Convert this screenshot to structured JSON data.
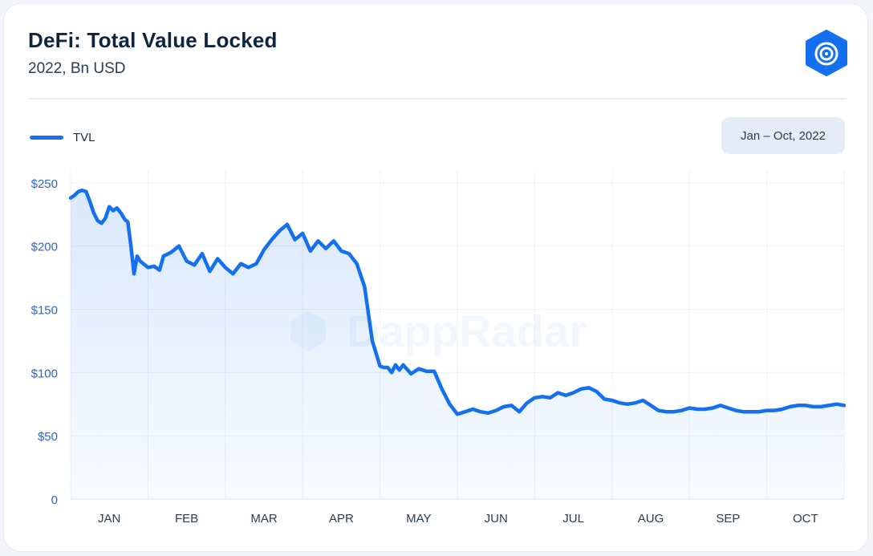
{
  "header": {
    "title": "DeFi: Total Value Locked",
    "subtitle": "2022, Bn USD",
    "logo_icon": "dappradar-logo-icon"
  },
  "legend": {
    "label": "TVL",
    "color": "#1570ef"
  },
  "date_range": {
    "label": "Jan – Oct, 2022"
  },
  "watermark": {
    "text": "DappRadar"
  },
  "chart_data": {
    "type": "area",
    "title": "DeFi: Total Value Locked",
    "subtitle": "2022, Bn USD",
    "xlabel": "",
    "ylabel": "",
    "x_ticks": [
      "JAN",
      "FEB",
      "MAR",
      "APR",
      "MAY",
      "JUN",
      "JUL",
      "AUG",
      "SEP",
      "OCT"
    ],
    "y_ticks": [
      "0",
      "$50",
      "$100",
      "$150",
      "$200",
      "$250"
    ],
    "y_tick_values": [
      0,
      50,
      100,
      150,
      200,
      250
    ],
    "ylim": [
      0,
      260
    ],
    "xlim": [
      0,
      10
    ],
    "grid": true,
    "legend_position": "top-left",
    "series": [
      {
        "name": "TVL",
        "color": "#1570ef",
        "x": [
          0.0,
          0.05,
          0.1,
          0.15,
          0.2,
          0.25,
          0.3,
          0.35,
          0.4,
          0.45,
          0.5,
          0.55,
          0.6,
          0.65,
          0.7,
          0.74,
          0.78,
          0.82,
          0.86,
          0.9,
          1.0,
          1.08,
          1.15,
          1.2,
          1.3,
          1.4,
          1.5,
          1.6,
          1.7,
          1.8,
          1.9,
          2.0,
          2.1,
          2.2,
          2.3,
          2.4,
          2.5,
          2.6,
          2.7,
          2.8,
          2.9,
          3.0,
          3.1,
          3.2,
          3.3,
          3.4,
          3.5,
          3.6,
          3.7,
          3.8,
          3.9,
          4.0,
          4.05,
          4.1,
          4.15,
          4.2,
          4.25,
          4.3,
          4.4,
          4.5,
          4.6,
          4.7,
          4.8,
          4.9,
          5.0,
          5.1,
          5.2,
          5.3,
          5.4,
          5.5,
          5.6,
          5.7,
          5.8,
          5.9,
          6.0,
          6.1,
          6.2,
          6.3,
          6.4,
          6.5,
          6.6,
          6.7,
          6.8,
          6.9,
          7.0,
          7.1,
          7.2,
          7.3,
          7.4,
          7.5,
          7.6,
          7.7,
          7.8,
          7.9,
          8.0,
          8.1,
          8.2,
          8.3,
          8.4,
          8.5,
          8.6,
          8.7,
          8.8,
          8.9,
          9.0,
          9.1,
          9.2,
          9.3,
          9.4,
          9.5,
          9.6,
          9.7,
          9.8,
          9.9,
          10.0
        ],
        "values": [
          238,
          240,
          243,
          244,
          243,
          235,
          226,
          220,
          218,
          222,
          231,
          228,
          230,
          226,
          221,
          219,
          200,
          178,
          192,
          188,
          183,
          184,
          181,
          192,
          195,
          200,
          188,
          185,
          194,
          180,
          190,
          183,
          178,
          186,
          183,
          186,
          197,
          205,
          212,
          217,
          205,
          210,
          196,
          204,
          198,
          204,
          196,
          194,
          186,
          168,
          125,
          105,
          104,
          104,
          100,
          106,
          102,
          106,
          99,
          103,
          101,
          101,
          87,
          75,
          67,
          69,
          71,
          69,
          68,
          70,
          73,
          74,
          69,
          76,
          80,
          81,
          80,
          84,
          82,
          84,
          87,
          88,
          85,
          79,
          78,
          76,
          75,
          76,
          78,
          74,
          70,
          69,
          69,
          70,
          72,
          71,
          71,
          72,
          74,
          72,
          70,
          69,
          69,
          69,
          70,
          70,
          71,
          73,
          74,
          74,
          73,
          73,
          74,
          75,
          74
        ]
      }
    ]
  }
}
